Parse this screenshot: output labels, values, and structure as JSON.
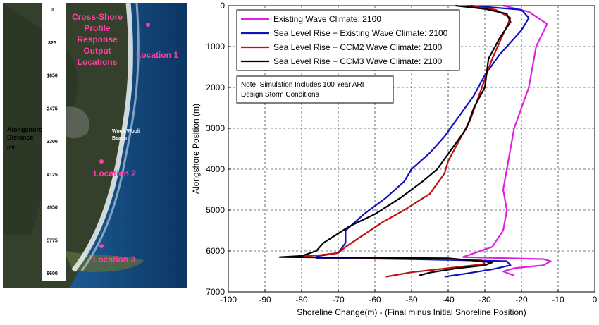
{
  "map": {
    "title_lines": [
      "Cross-Shore",
      "Profile",
      "Response",
      "Output",
      "Locations"
    ],
    "axis_label_lines": [
      "Alongshore",
      "Distance"
    ],
    "axis_unit": "(m)",
    "ticks": [
      "0",
      "825",
      "1650",
      "2475",
      "3300",
      "4125",
      "4950",
      "5775",
      "6600"
    ],
    "beach_label_lines": [
      "Wooli Wooli",
      "Beach"
    ],
    "locations": [
      {
        "label": "Location 1"
      },
      {
        "label": "Location 2"
      },
      {
        "label": "Location 3"
      }
    ],
    "colors": {
      "land": "#2f3b2a",
      "ocean": "#0f3f70",
      "surf": "#e8f0f6",
      "label": "#ff3fa3",
      "strip": "#ffffff"
    }
  },
  "chart_data": {
    "type": "line",
    "xlabel": "Shoreline Change(m) - (Final minus Initial Shoreline Position)",
    "ylabel": "Alongshore Position (m)",
    "xlim": [
      -100,
      0
    ],
    "ylim": [
      0,
      7000
    ],
    "y_inverted": true,
    "grid": true,
    "x_ticks": [
      -100,
      -90,
      -80,
      -70,
      -60,
      -50,
      -40,
      -30,
      -20,
      -10,
      0
    ],
    "y_ticks": [
      0,
      1000,
      2000,
      3000,
      4000,
      5000,
      6000,
      7000
    ],
    "legend_position": "top-left",
    "note_lines": [
      "Note: Simulation Includes 100 Year ARI",
      "Design Storm Conditions"
    ],
    "series": [
      {
        "name": "Existing Wave Climate: 2100",
        "color": "#e020e0",
        "points": [
          [
            -25,
            0
          ],
          [
            -18,
            150
          ],
          [
            -13,
            450
          ],
          [
            -16,
            1000
          ],
          [
            -17,
            1500
          ],
          [
            -18,
            2000
          ],
          [
            -20,
            2500
          ],
          [
            -22,
            3000
          ],
          [
            -23,
            3500
          ],
          [
            -24,
            4000
          ],
          [
            -25,
            4500
          ],
          [
            -24,
            5000
          ],
          [
            -25,
            5500
          ],
          [
            -28,
            5900
          ],
          [
            -36,
            6150
          ],
          [
            -14,
            6200
          ],
          [
            -12,
            6250
          ],
          [
            -14,
            6350
          ],
          [
            -22,
            6420
          ],
          [
            -25,
            6500
          ],
          [
            -22,
            6600
          ]
        ]
      },
      {
        "name": "Sea Level Rise + Existing Wave Climate: 2100",
        "color": "#1010c0",
        "points": [
          [
            -34,
            0
          ],
          [
            -20,
            100
          ],
          [
            -18,
            300
          ],
          [
            -20,
            600
          ],
          [
            -26,
            1200
          ],
          [
            -30,
            1700
          ],
          [
            -33,
            2200
          ],
          [
            -37,
            2700
          ],
          [
            -41,
            3200
          ],
          [
            -45,
            3600
          ],
          [
            -50,
            4000
          ],
          [
            -52,
            4300
          ],
          [
            -57,
            4700
          ],
          [
            -63,
            5100
          ],
          [
            -68,
            5500
          ],
          [
            -68,
            5800
          ],
          [
            -70,
            6050
          ],
          [
            -76,
            6130
          ],
          [
            -76,
            6170
          ],
          [
            -50,
            6200
          ],
          [
            -24,
            6250
          ],
          [
            -23,
            6350
          ],
          [
            -28,
            6450
          ],
          [
            -35,
            6550
          ],
          [
            -41,
            6630
          ]
        ]
      },
      {
        "name": "Sea Level Rise + CCM2 Wave Climate: 2100",
        "color": "#c01010",
        "points": [
          [
            -35,
            0
          ],
          [
            -27,
            100
          ],
          [
            -23,
            300
          ],
          [
            -25,
            700
          ],
          [
            -28,
            1300
          ],
          [
            -30,
            1800
          ],
          [
            -32,
            2300
          ],
          [
            -34,
            2800
          ],
          [
            -37,
            3300
          ],
          [
            -40,
            3800
          ],
          [
            -41,
            4100
          ],
          [
            -45,
            4600
          ],
          [
            -52,
            5000
          ],
          [
            -58,
            5300
          ],
          [
            -63,
            5600
          ],
          [
            -68,
            5900
          ],
          [
            -70,
            6050
          ],
          [
            -75,
            6100
          ],
          [
            -83,
            6150
          ],
          [
            -50,
            6180
          ],
          [
            -31,
            6220
          ],
          [
            -30,
            6320
          ],
          [
            -40,
            6420
          ],
          [
            -50,
            6520
          ],
          [
            -57,
            6630
          ]
        ]
      },
      {
        "name": "Sea Level Rise + CCM3 Wave Climate: 2100",
        "color": "#000000",
        "points": [
          [
            -38,
            0
          ],
          [
            -30,
            80
          ],
          [
            -24,
            200
          ],
          [
            -23,
            400
          ],
          [
            -26,
            800
          ],
          [
            -29,
            1300
          ],
          [
            -30,
            2000
          ],
          [
            -33,
            2500
          ],
          [
            -35,
            3000
          ],
          [
            -39,
            3500
          ],
          [
            -43,
            4000
          ],
          [
            -47,
            4300
          ],
          [
            -53,
            4700
          ],
          [
            -60,
            5100
          ],
          [
            -67,
            5400
          ],
          [
            -74,
            5800
          ],
          [
            -76,
            6000
          ],
          [
            -80,
            6120
          ],
          [
            -86,
            6150
          ],
          [
            -40,
            6180
          ],
          [
            -28,
            6280
          ],
          [
            -30,
            6350
          ],
          [
            -38,
            6430
          ],
          [
            -45,
            6530
          ],
          [
            -48,
            6600
          ]
        ]
      }
    ]
  }
}
